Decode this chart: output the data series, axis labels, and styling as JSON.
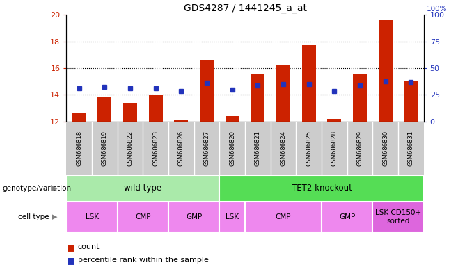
{
  "title": "GDS4287 / 1441245_a_at",
  "samples": [
    "GSM686818",
    "GSM686819",
    "GSM686822",
    "GSM686823",
    "GSM686826",
    "GSM686827",
    "GSM686820",
    "GSM686821",
    "GSM686824",
    "GSM686825",
    "GSM686828",
    "GSM686829",
    "GSM686830",
    "GSM686831"
  ],
  "counts": [
    12.6,
    13.8,
    13.4,
    14.0,
    12.1,
    16.6,
    12.4,
    15.6,
    16.2,
    17.7,
    12.2,
    15.6,
    19.6,
    15.0
  ],
  "percentiles": [
    14.5,
    14.6,
    14.5,
    14.5,
    14.3,
    14.9,
    14.4,
    14.7,
    14.8,
    14.8,
    14.3,
    14.7,
    15.0,
    14.95
  ],
  "base": 12.0,
  "ylim_left": [
    12,
    20
  ],
  "ylim_right": [
    0,
    100
  ],
  "yticks_left": [
    12,
    14,
    16,
    18,
    20
  ],
  "yticks_right": [
    0,
    25,
    50,
    75,
    100
  ],
  "bar_color": "#cc2200",
  "dot_color": "#2233bb",
  "bar_width": 0.55,
  "genotype_groups": [
    {
      "label": "wild type",
      "start": 0,
      "end": 6,
      "color": "#aaeaaa"
    },
    {
      "label": "TET2 knockout",
      "start": 6,
      "end": 14,
      "color": "#55dd55"
    }
  ],
  "cell_type_groups": [
    {
      "label": "LSK",
      "start": 0,
      "end": 2,
      "color": "#ee88ee"
    },
    {
      "label": "CMP",
      "start": 2,
      "end": 4,
      "color": "#ee88ee"
    },
    {
      "label": "GMP",
      "start": 4,
      "end": 6,
      "color": "#ee88ee"
    },
    {
      "label": "LSK",
      "start": 6,
      "end": 7,
      "color": "#ee88ee"
    },
    {
      "label": "CMP",
      "start": 7,
      "end": 10,
      "color": "#ee88ee"
    },
    {
      "label": "GMP",
      "start": 10,
      "end": 12,
      "color": "#ee88ee"
    },
    {
      "label": "LSK CD150+\nsorted",
      "start": 12,
      "end": 14,
      "color": "#dd66dd"
    }
  ],
  "tick_color_left": "#cc2200",
  "tick_color_right": "#2233bb",
  "sample_bg_color": "#cccccc",
  "grid_lines": [
    14,
    16,
    18
  ]
}
